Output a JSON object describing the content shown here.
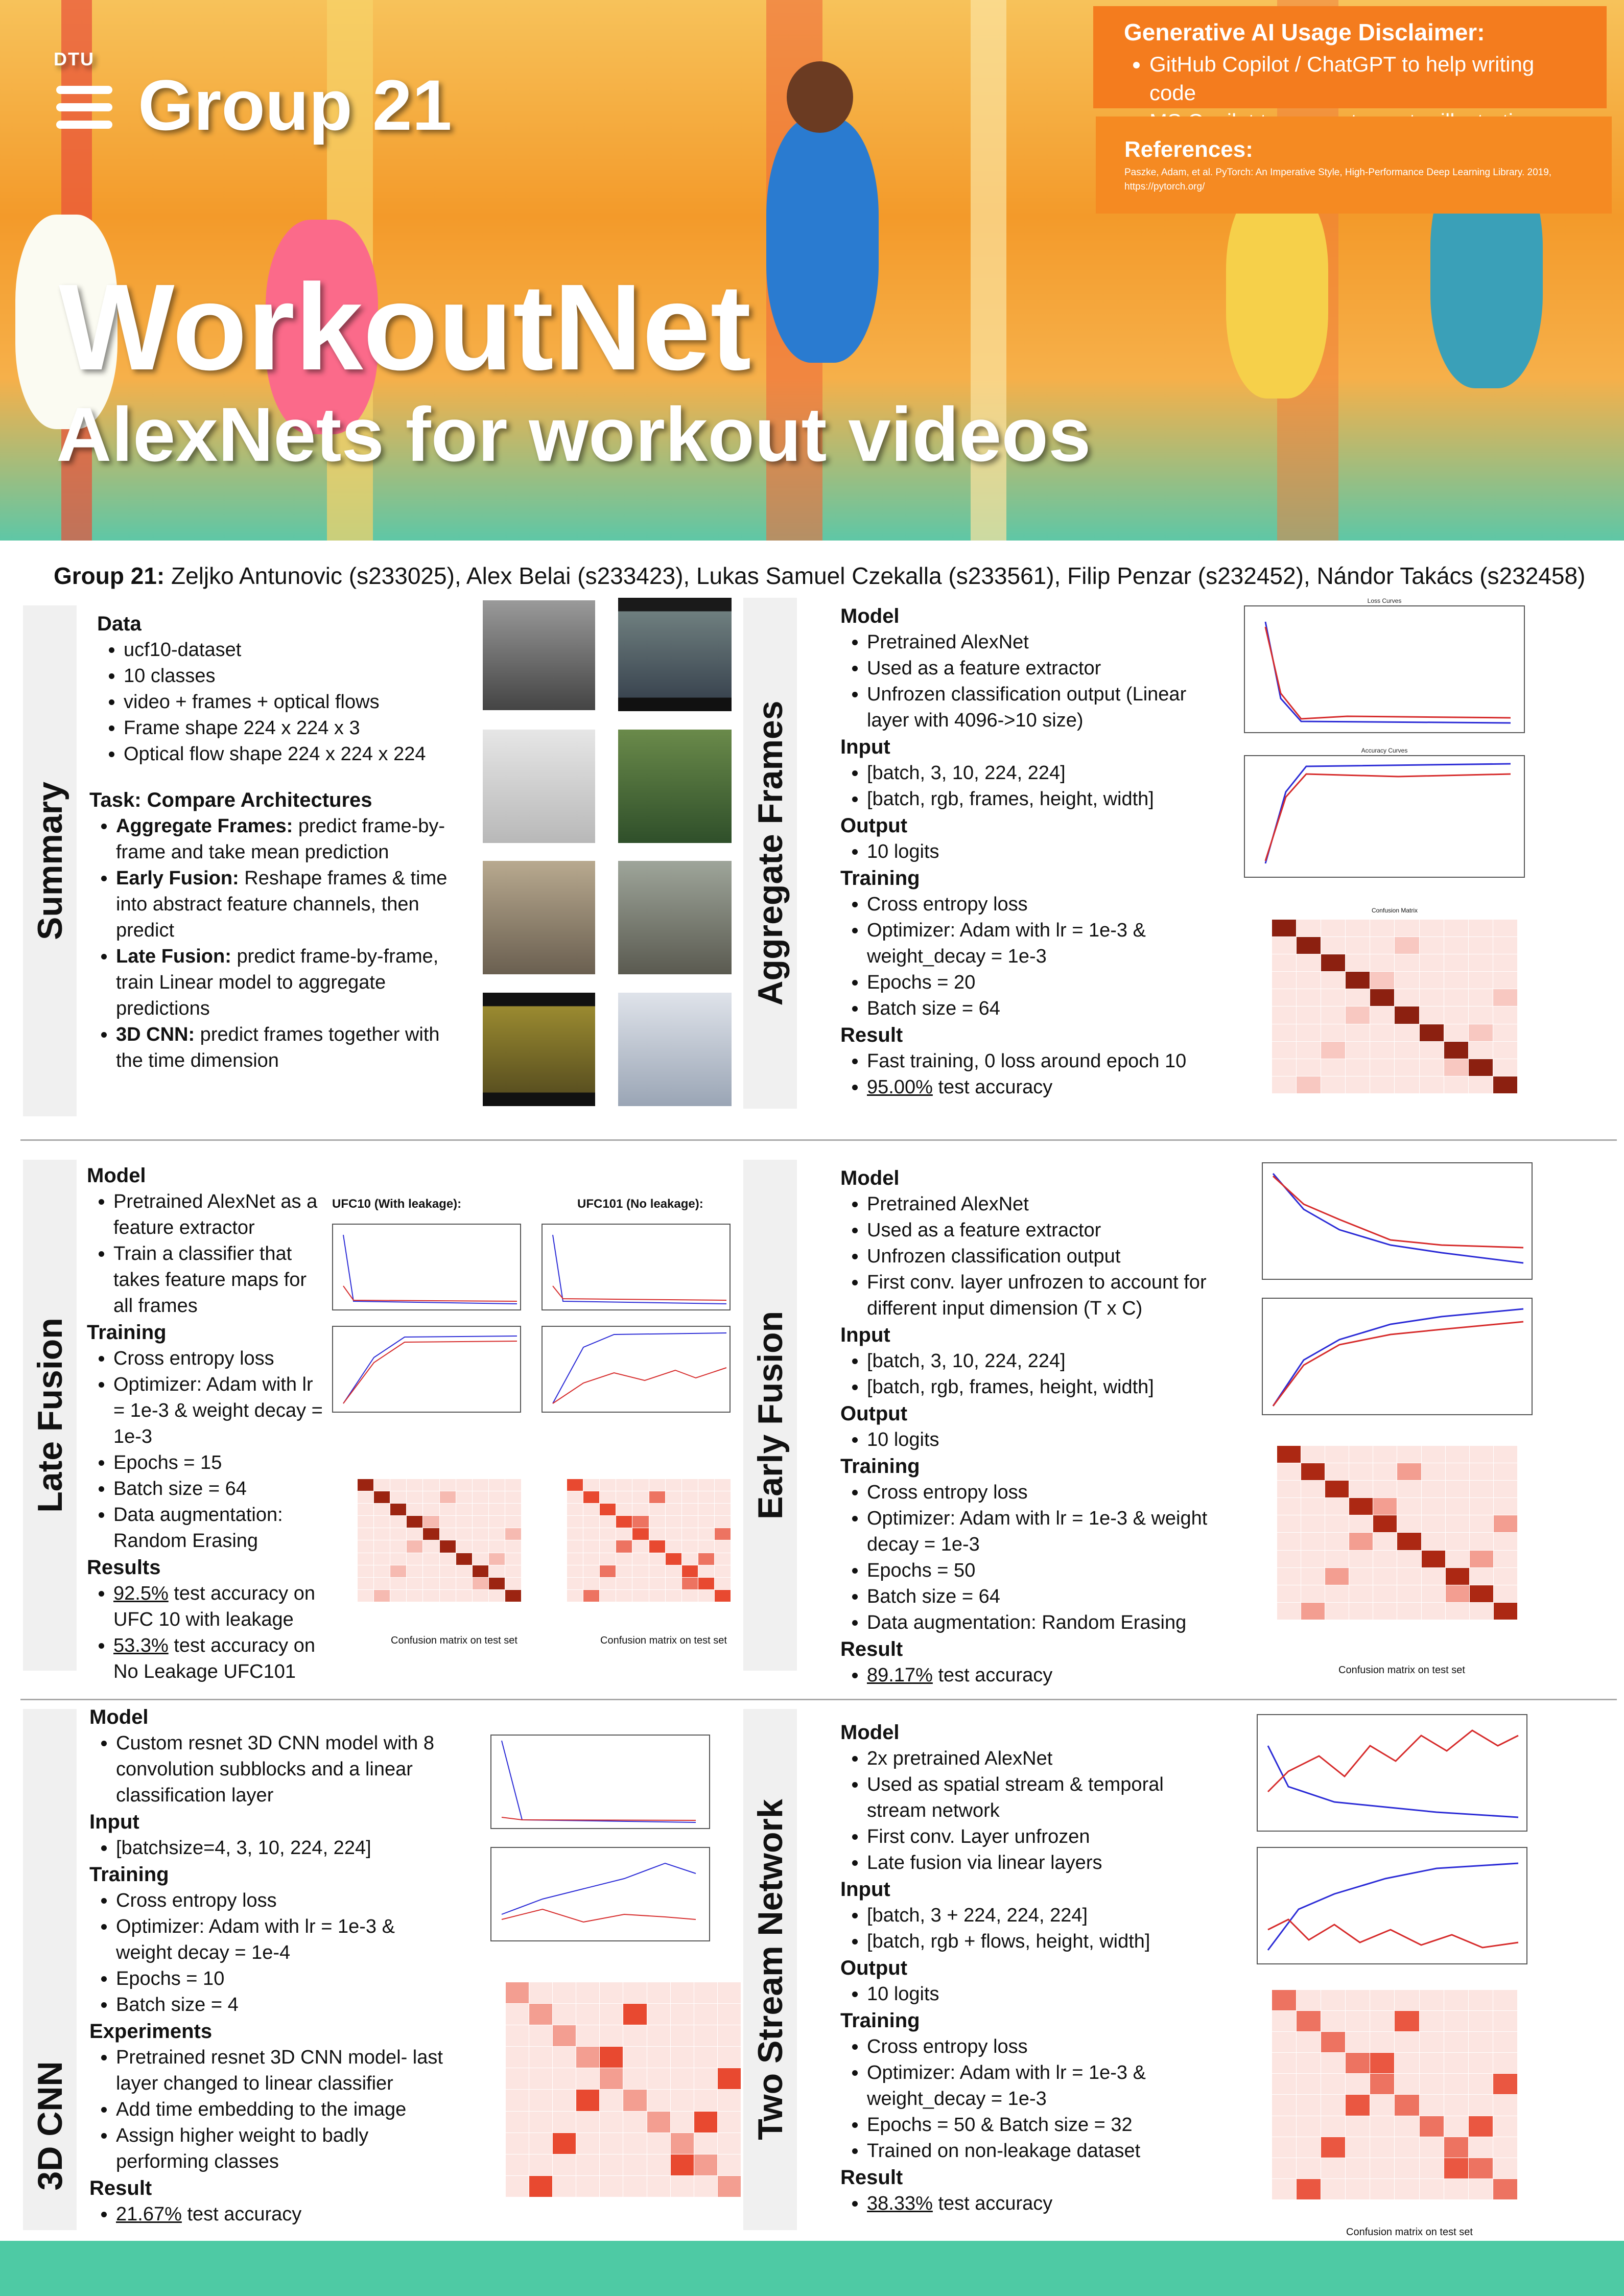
{
  "header": {
    "group_logo_text": "DTU",
    "group_title": "Group 21",
    "main_title": "WorkoutNet",
    "subtitle": "AlexNets for workout videos",
    "disclaimer": {
      "title": "Generative AI Usage Disclaimer:",
      "items": [
        "GitHub Copilot / ChatGPT to help writing code",
        "MS Copilot to generate poster illustration"
      ]
    },
    "references": {
      "title": "References:",
      "text": "Paszke, Adam, et al. PyTorch: An Imperative Style, High-Performance Deep Learning Library. 2019,",
      "link": "https://pytorch.org/"
    }
  },
  "authors": {
    "label": "Group 21:",
    "names": "Zeljko Antunovic (s233025), Alex Belai (s233423), Lukas Samuel Czekalla (s233561), Filip Penzar (s232452), Nándor Takács (s232458)"
  },
  "summary": {
    "label": "Summary",
    "data_title": "Data",
    "data_items": [
      "ucf10-dataset",
      "10 classes",
      "video + frames + optical flows",
      "Frame shape 224 x 224 x 3",
      "Optical flow shape 224 x 224 x 224"
    ],
    "task_title": "Task: Compare Architectures",
    "tasks": [
      {
        "bold": "Aggregate Frames:",
        "text": " predict frame-by-frame and take mean prediction"
      },
      {
        "bold": "Early Fusion:",
        "text": " Reshape frames & time into abstract feature channels, then predict"
      },
      {
        "bold": "Late Fusion:",
        "text": " predict frame-by-frame, train Linear model to aggregate predictions"
      },
      {
        "bold": "3D CNN:",
        "text": " predict frames together with the time dimension"
      }
    ]
  },
  "aggregate": {
    "label": "Aggregate Frames",
    "model_title": "Model",
    "model": [
      "Pretrained AlexNet",
      "Used as a feature extractor",
      "Unfrozen classification output (Linear layer with 4096->10 size)"
    ],
    "input_title": "Input",
    "input": [
      "[batch, 3, 10, 224, 224]",
      "[batch, rgb, frames, height, width]"
    ],
    "output_title": "Output",
    "output": [
      "10 logits"
    ],
    "training_title": "Training",
    "training": [
      "Cross entropy loss",
      "Optimizer: Adam with lr = 1e-3 & weight_decay = 1e-3",
      "Epochs = 20",
      "Batch size = 64"
    ],
    "result_title": "Result",
    "result_1": "Fast training, 0 loss around epoch 10",
    "result_acc": "95.00%",
    "result_acc_suffix": " test accuracy",
    "loss_title": "Loss Curves",
    "acc_title": "Accuracy Curves",
    "cm_title": "Confusion Matrix"
  },
  "late": {
    "label": "Late Fusion",
    "model_title": "Model",
    "model": [
      "Pretrained AlexNet as a feature extractor",
      "Train a classifier that takes feature maps for all frames"
    ],
    "training_title": "Training",
    "training": [
      "Cross entropy loss",
      "Optimizer: Adam with lr = 1e-3 & weight decay = 1e-3",
      "Epochs = 15",
      "Batch size = 64",
      "Data augmentation: Random Erasing"
    ],
    "results_title": "Results",
    "res1_acc": "92.5%",
    "res1_suffix": " test accuracy on UFC 10 with leakage",
    "res2_acc": "53.3%",
    "res2_suffix": "  test accuracy on No Leakage UFC101",
    "plot_a_title": "UFC10 (With leakage):",
    "plot_b_title": "UFC101 (No leakage):",
    "cm_caption_a": "Confusion matrix on test set",
    "cm_caption_b": "Confusion matrix on test set"
  },
  "early": {
    "label": "Early Fusion",
    "model_title": "Model",
    "model": [
      "Pretrained AlexNet",
      "Used as a feature extractor",
      "Unfrozen classification output",
      "First conv. layer unfrozen to account for different input dimension (T x C)"
    ],
    "input_title": "Input",
    "input": [
      "[batch, 3, 10, 224, 224]",
      "[batch, rgb, frames, height, width]"
    ],
    "output_title": "Output",
    "output": [
      "10 logits"
    ],
    "training_title": "Training",
    "training": [
      "Cross entropy loss",
      "Optimizer: Adam with lr = 1e-3 & weight decay = 1e-3",
      "Epochs = 50",
      "Batch size = 64",
      "Data augmentation: Random Erasing"
    ],
    "result_title": "Result",
    "result_acc": "89.17%",
    "result_suffix": " test accuracy",
    "cm_caption": "Confusion matrix on test set"
  },
  "cnn3d": {
    "label": "3D CNN",
    "model_title": "Model",
    "model": [
      "Custom resnet 3D CNN model with 8 convolution subblocks and a linear classification layer"
    ],
    "input_title": "Input",
    "input": [
      "[batchsize=4, 3, 10, 224, 224]"
    ],
    "training_title": "Training",
    "training": [
      "Cross entropy loss",
      "Optimizer: Adam with lr = 1e-3 & weight decay = 1e-4",
      "Epochs = 10",
      "Batch size = 4"
    ],
    "experiments_title": "Experiments",
    "experiments": [
      "Pretrained resnet 3D CNN model- last layer changed to linear classifier",
      "Add time embedding to the image",
      "Assign higher weight to badly performing classes"
    ],
    "result_title": "Result",
    "result_acc": "21.67%",
    "result_suffix": " test accuracy"
  },
  "twostream": {
    "label": "Two Stream Network",
    "model_title": "Model",
    "model": [
      "2x pretrained AlexNet",
      "Used as spatial stream & temporal stream network",
      "First conv. Layer unfrozen",
      "Late fusion via linear layers"
    ],
    "input_title": "Input",
    "input": [
      "[batch, 3 + 224, 224, 224]",
      "[batch, rgb + flows, height, width]"
    ],
    "output_title": "Output",
    "output": [
      "10 logits"
    ],
    "training_title": "Training",
    "training": [
      "Cross entropy loss",
      "Optimizer: Adam with lr = 1e-3 & weight_decay = 1e-3",
      "Epochs = 50 & Batch size = 32",
      "Trained on non-leakage dataset"
    ],
    "result_title": "Result",
    "result_acc": "38.33%",
    "result_suffix": " test accuracy",
    "cm_caption": "Confusion matrix on test set"
  },
  "colors": {
    "orange": "#f47c1e",
    "teal": "#4ecaa4",
    "train_line": "#2b2bd6",
    "val_line": "#d62b2b"
  }
}
